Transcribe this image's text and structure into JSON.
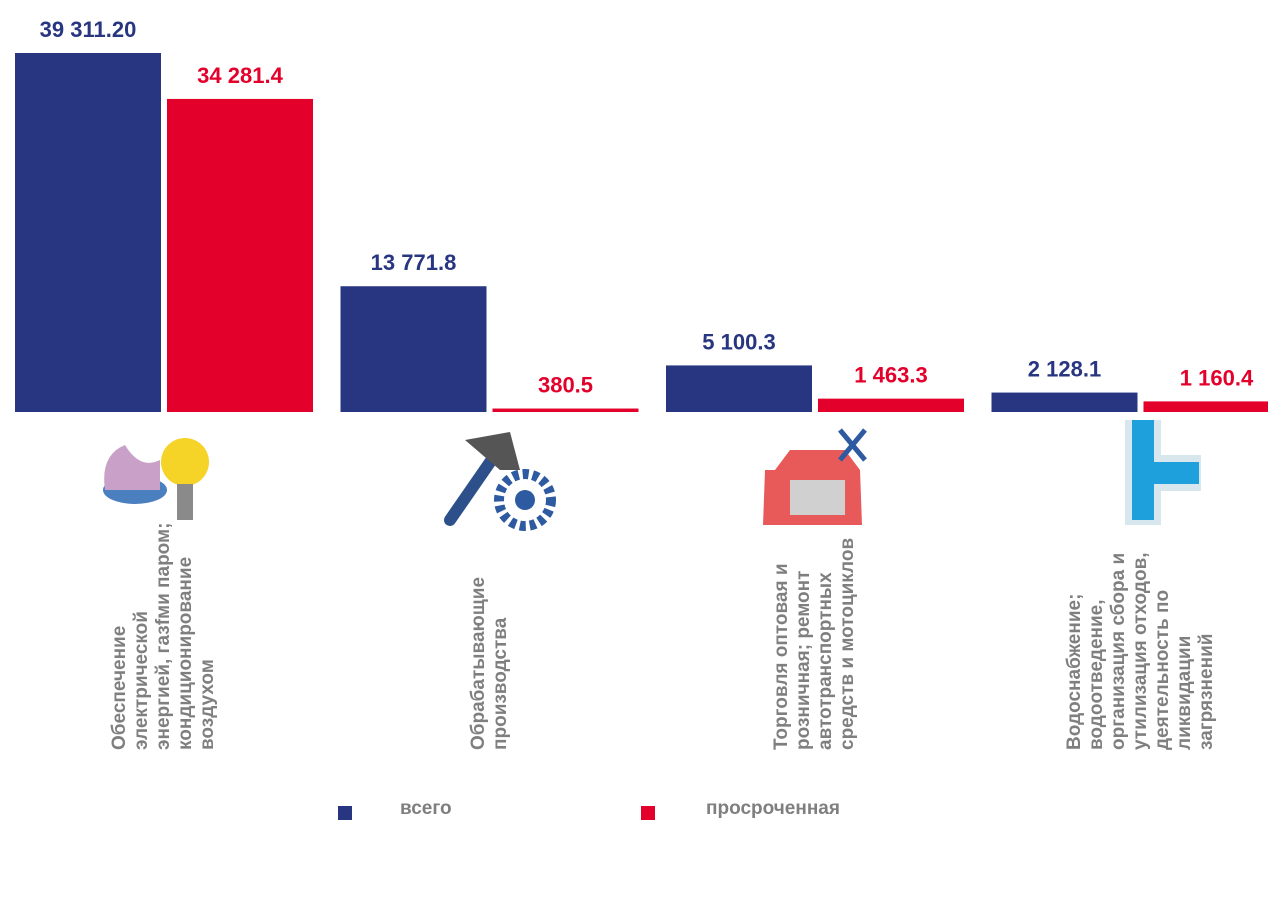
{
  "chart_data": {
    "type": "bar",
    "categories": [
      "Обеспечение электрической энергией, газfми паром; кондиционирование воздухом",
      "Обрабатывающие производства",
      "Торговля оптовая и розничная; ремонт автотранспортных средств и мотоциклов",
      "Водоснабжение; водоотведение, организация сбора и утилизация отходов, деятельность по ликвидации загрязнений"
    ],
    "series": [
      {
        "name": "всего",
        "color": "#283580",
        "values": [
          39311.2,
          13771.8,
          5100.3,
          2128.1
        ],
        "value_labels": [
          "39 311.20",
          "13 771.8",
          "5 100.3",
          "2 128.1"
        ]
      },
      {
        "name": "просроченная",
        "color": "#e3002b",
        "values": [
          34281.4,
          380.5,
          1463.3,
          1160.4
        ],
        "value_labels": [
          "34 281.4",
          "380.5",
          "1 463.3",
          "1 160.4"
        ]
      }
    ]
  }
}
